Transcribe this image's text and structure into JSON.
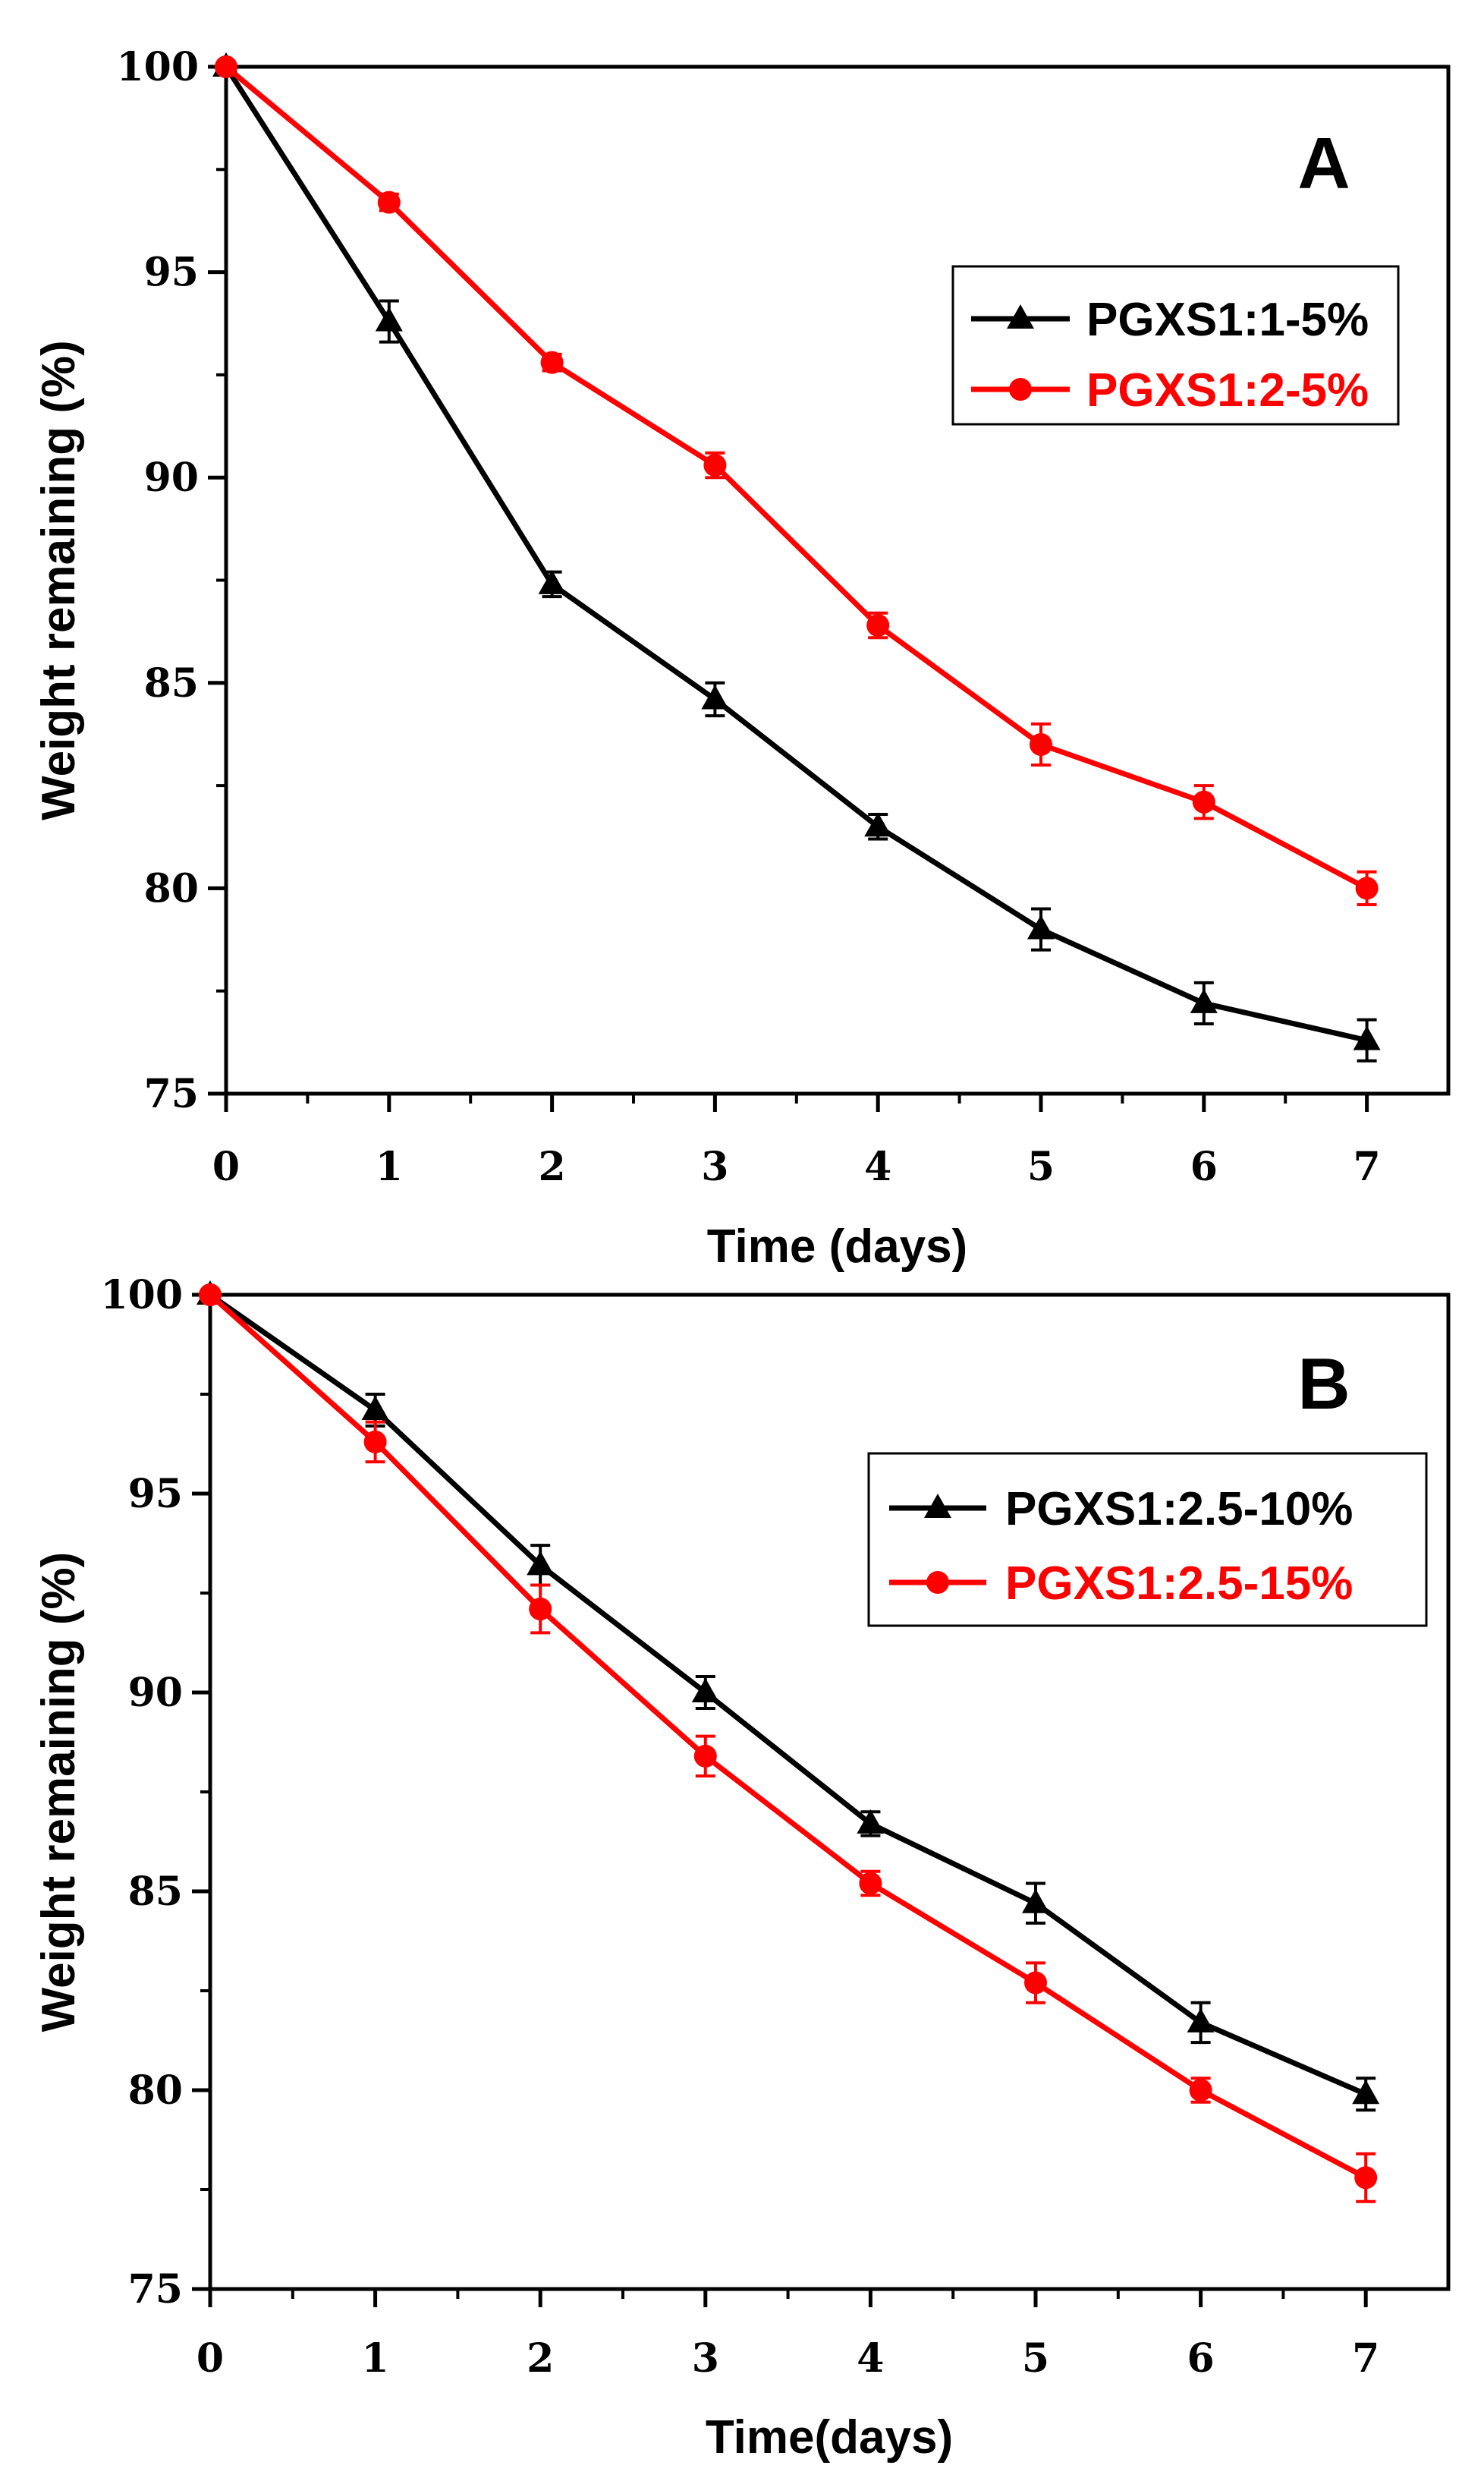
{
  "chart_data": [
    {
      "type": "line",
      "panel_label": "A",
      "xlabel": "Time (days)",
      "ylabel": "Weight remaining (%)",
      "xlim": [
        0,
        7.5
      ],
      "ylim": [
        75,
        100
      ],
      "x_ticks": [
        "0",
        "1",
        "2",
        "3",
        "4",
        "5",
        "6",
        "7"
      ],
      "y_ticks": [
        "75",
        "80",
        "85",
        "90",
        "95",
        "100"
      ],
      "legend_position": "top-right",
      "grid": false,
      "x": [
        0,
        1,
        2,
        3,
        4,
        5,
        6,
        7
      ],
      "series": [
        {
          "name": "PGXS1:1-5%",
          "color": "#000000",
          "marker": "triangle",
          "values": [
            100,
            93.8,
            87.4,
            84.6,
            81.5,
            79.0,
            77.2,
            76.3
          ],
          "errors": [
            0,
            0.5,
            0.3,
            0.4,
            0.3,
            0.5,
            0.5,
            0.5
          ]
        },
        {
          "name": "PGXS1:2-5%",
          "color": "#ff0000",
          "marker": "circle",
          "values": [
            100,
            96.7,
            92.8,
            90.3,
            86.4,
            83.5,
            82.1,
            80.0
          ],
          "errors": [
            0,
            0.2,
            0.2,
            0.3,
            0.3,
            0.5,
            0.4,
            0.4
          ]
        }
      ]
    },
    {
      "type": "line",
      "panel_label": "B",
      "xlabel": "Time(days)",
      "ylabel": "Weight remaining (%)",
      "xlim": [
        0,
        7.5
      ],
      "ylim": [
        75,
        100
      ],
      "x_ticks": [
        "0",
        "1",
        "2",
        "3",
        "4",
        "5",
        "6",
        "7"
      ],
      "y_ticks": [
        "75",
        "80",
        "85",
        "90",
        "95",
        "100"
      ],
      "legend_position": "top-right",
      "grid": false,
      "x": [
        0,
        1,
        2,
        3,
        4,
        5,
        6,
        7
      ],
      "series": [
        {
          "name": "PGXS1:2.5-10%",
          "color": "#000000",
          "marker": "triangle",
          "values": [
            100,
            97.1,
            93.2,
            90.0,
            86.7,
            84.7,
            81.7,
            79.9
          ],
          "errors": [
            0,
            0.4,
            0.5,
            0.4,
            0.3,
            0.5,
            0.5,
            0.4
          ]
        },
        {
          "name": "PGXS1:2.5-15%",
          "color": "#ff0000",
          "marker": "circle",
          "values": [
            100,
            96.3,
            92.1,
            88.4,
            85.2,
            82.7,
            80.0,
            77.8
          ],
          "errors": [
            0,
            0.5,
            0.6,
            0.5,
            0.3,
            0.5,
            0.3,
            0.6
          ]
        }
      ]
    }
  ]
}
